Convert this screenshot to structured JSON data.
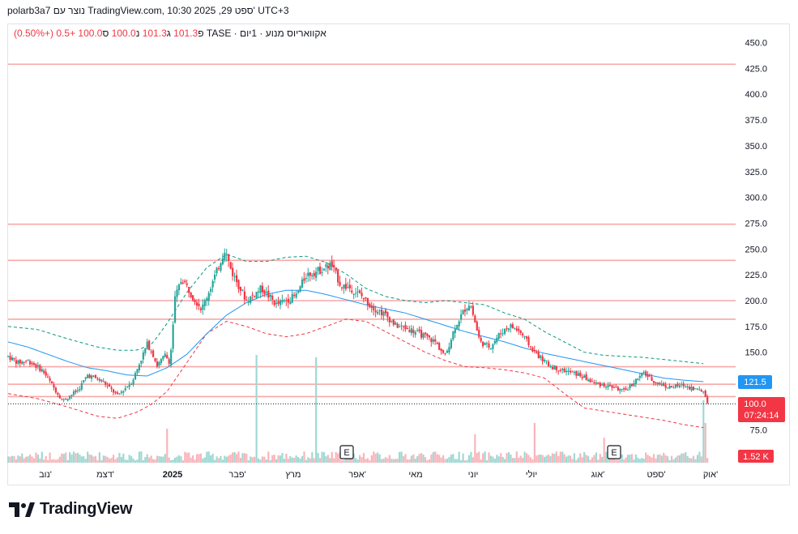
{
  "header": {
    "text": "polarb3a7 נוצר עם TradingView.com, 10:30 2025 ,29 ספט' UTC+3"
  },
  "legend": {
    "symbol": "אקוואריוס מנוע · 1יום · TASE",
    "open_label": "פ",
    "open": "101.3",
    "high_label": "ג",
    "high": "101.3",
    "low_label": "נ",
    "low": "100.0",
    "close_label": "ס",
    "close": "100.0",
    "change": "+0.5 (+0.50%)"
  },
  "colors": {
    "up": "#26a69a",
    "down": "#f23645",
    "sma": "#2196f3",
    "upper_band": "#089981",
    "lower_band": "#f23645",
    "hline": "#f7a9a7",
    "price_badge": "#f23645",
    "sma_badge": "#2196f3"
  },
  "price_badge": {
    "value": "100.0",
    "countdown": "07:24:14"
  },
  "sma_badge": {
    "value": "121.5"
  },
  "volume_badge": {
    "value": "1.52 K"
  },
  "earnings_markers": [
    "E",
    "E"
  ],
  "logo": {
    "text": "TradingView"
  },
  "chart_data": {
    "type": "candlestick",
    "y_axis_ticks": [
      "450.0",
      "425.0",
      "400.0",
      "375.0",
      "350.0",
      "325.0",
      "300.0",
      "275.0",
      "250.0",
      "225.0",
      "200.0",
      "175.0",
      "150.0",
      "125.0",
      "100.0",
      "75.0"
    ],
    "ylim": [
      65,
      460
    ],
    "x_axis_labels": [
      "נוב'",
      "דצמ'",
      "2025",
      "פבר'",
      "מרץ",
      "אפר'",
      "מאי",
      "יוני",
      "יולי",
      "אוג'",
      "ספט'",
      "אוק'"
    ],
    "horizontal_levels": [
      429,
      274,
      239,
      200,
      182,
      136,
      119,
      107
    ],
    "last_price": 100.0,
    "series": [
      {
        "name": "price",
        "anchors": [
          [
            0,
            146
          ],
          [
            10,
            140
          ],
          [
            20,
            142
          ],
          [
            35,
            132
          ],
          [
            45,
            117
          ],
          [
            55,
            103
          ],
          [
            70,
            113
          ],
          [
            80,
            128
          ],
          [
            95,
            122
          ],
          [
            110,
            108
          ],
          [
            125,
            122
          ],
          [
            140,
            158
          ],
          [
            145,
            150
          ],
          [
            150,
            137
          ],
          [
            158,
            147
          ],
          [
            163,
            140
          ],
          [
            168,
            202
          ],
          [
            175,
            222
          ],
          [
            185,
            205
          ],
          [
            195,
            192
          ],
          [
            210,
            228
          ],
          [
            218,
            250
          ],
          [
            225,
            228
          ],
          [
            240,
            200
          ],
          [
            255,
            212
          ],
          [
            270,
            196
          ],
          [
            290,
            205
          ],
          [
            300,
            225
          ],
          [
            315,
            230
          ],
          [
            325,
            235
          ],
          [
            335,
            215
          ],
          [
            345,
            212
          ],
          [
            355,
            205
          ],
          [
            365,
            195
          ],
          [
            380,
            186
          ],
          [
            390,
            176
          ],
          [
            405,
            172
          ],
          [
            420,
            165
          ],
          [
            430,
            160
          ],
          [
            440,
            146
          ],
          [
            450,
            175
          ],
          [
            460,
            192
          ],
          [
            465,
            198
          ],
          [
            475,
            160
          ],
          [
            485,
            155
          ],
          [
            495,
            168
          ],
          [
            505,
            176
          ],
          [
            515,
            170
          ],
          [
            530,
            150
          ],
          [
            545,
            137
          ],
          [
            560,
            132
          ],
          [
            575,
            128
          ],
          [
            590,
            120
          ],
          [
            610,
            116
          ],
          [
            620,
            112
          ],
          [
            640,
            130
          ],
          [
            650,
            122
          ],
          [
            665,
            116
          ],
          [
            680,
            118
          ],
          [
            700,
            112
          ],
          [
            705,
            100
          ]
        ]
      },
      {
        "name": "sma",
        "anchors": [
          [
            0,
            160
          ],
          [
            20,
            155
          ],
          [
            40,
            148
          ],
          [
            60,
            141
          ],
          [
            80,
            135
          ],
          [
            100,
            132
          ],
          [
            120,
            128
          ],
          [
            140,
            127
          ],
          [
            160,
            135
          ],
          [
            180,
            148
          ],
          [
            200,
            168
          ],
          [
            220,
            186
          ],
          [
            240,
            198
          ],
          [
            260,
            206
          ],
          [
            280,
            210
          ],
          [
            300,
            210
          ],
          [
            320,
            206
          ],
          [
            340,
            201
          ],
          [
            360,
            196
          ],
          [
            380,
            192
          ],
          [
            400,
            188
          ],
          [
            420,
            182
          ],
          [
            440,
            176
          ],
          [
            460,
            170
          ],
          [
            480,
            165
          ],
          [
            500,
            160
          ],
          [
            520,
            154
          ],
          [
            540,
            149
          ],
          [
            560,
            145
          ],
          [
            580,
            141
          ],
          [
            600,
            137
          ],
          [
            620,
            133
          ],
          [
            640,
            129
          ],
          [
            660,
            125
          ],
          [
            680,
            123
          ],
          [
            700,
            121.5
          ]
        ]
      },
      {
        "name": "upper",
        "anchors": [
          [
            0,
            175
          ],
          [
            30,
            172
          ],
          [
            60,
            163
          ],
          [
            90,
            155
          ],
          [
            110,
            152
          ],
          [
            130,
            152
          ],
          [
            145,
            158
          ],
          [
            160,
            178
          ],
          [
            180,
            208
          ],
          [
            200,
            232
          ],
          [
            220,
            245
          ],
          [
            240,
            238
          ],
          [
            260,
            238
          ],
          [
            280,
            242
          ],
          [
            300,
            243
          ],
          [
            320,
            237
          ],
          [
            340,
            226
          ],
          [
            360,
            212
          ],
          [
            380,
            204
          ],
          [
            400,
            200
          ],
          [
            420,
            198
          ],
          [
            440,
            200
          ],
          [
            460,
            198
          ],
          [
            480,
            196
          ],
          [
            500,
            188
          ],
          [
            520,
            182
          ],
          [
            540,
            170
          ],
          [
            560,
            160
          ],
          [
            580,
            150
          ],
          [
            600,
            147
          ],
          [
            620,
            146
          ],
          [
            640,
            145
          ],
          [
            660,
            143
          ],
          [
            680,
            141
          ],
          [
            700,
            139
          ]
        ]
      },
      {
        "name": "lower",
        "anchors": [
          [
            0,
            110
          ],
          [
            30,
            105
          ],
          [
            60,
            97
          ],
          [
            90,
            88
          ],
          [
            110,
            86
          ],
          [
            130,
            92
          ],
          [
            145,
            100
          ],
          [
            160,
            112
          ],
          [
            180,
            140
          ],
          [
            200,
            168
          ],
          [
            220,
            180
          ],
          [
            240,
            175
          ],
          [
            260,
            168
          ],
          [
            280,
            165
          ],
          [
            300,
            168
          ],
          [
            320,
            175
          ],
          [
            340,
            182
          ],
          [
            360,
            180
          ],
          [
            380,
            170
          ],
          [
            400,
            160
          ],
          [
            420,
            150
          ],
          [
            440,
            142
          ],
          [
            460,
            136
          ],
          [
            480,
            135
          ],
          [
            500,
            133
          ],
          [
            520,
            130
          ],
          [
            540,
            125
          ],
          [
            560,
            110
          ],
          [
            580,
            96
          ],
          [
            600,
            93
          ],
          [
            620,
            90
          ],
          [
            640,
            87
          ],
          [
            660,
            84
          ],
          [
            680,
            80
          ],
          [
            700,
            77
          ]
        ]
      }
    ],
    "volume_spikes": [
      [
        145,
        0.45
      ],
      [
        160,
        0.3
      ],
      [
        245,
        0.75
      ],
      [
        250,
        0.95
      ],
      [
        255,
        0.62
      ],
      [
        310,
        0.93
      ],
      [
        313,
        0.45
      ],
      [
        470,
        0.25
      ],
      [
        530,
        0.35
      ],
      [
        600,
        0.22
      ],
      [
        700,
        0.55
      ],
      [
        702,
        0.35
      ]
    ]
  }
}
